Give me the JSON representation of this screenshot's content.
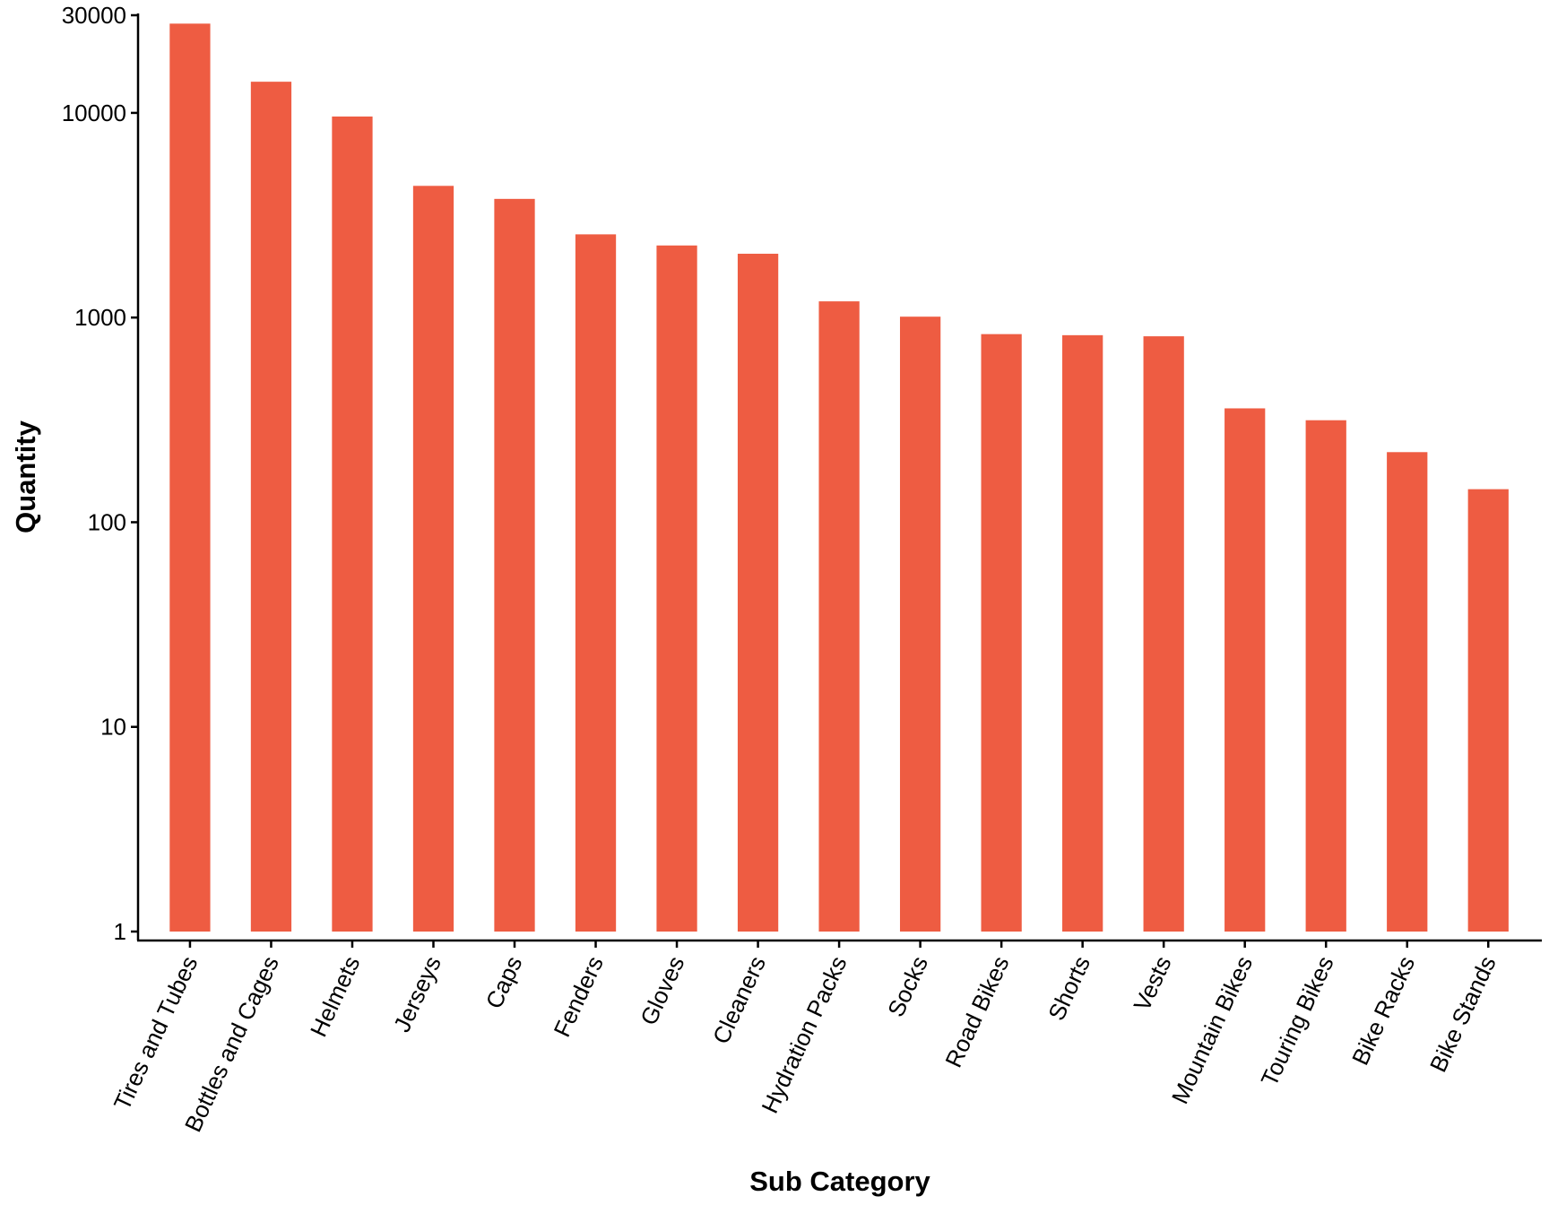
{
  "chart_data": {
    "type": "bar",
    "xlabel": "Sub Category",
    "ylabel": "Quantity",
    "yscale": "log",
    "ylim": [
      1,
      30000
    ],
    "yticks": [
      1,
      10,
      100,
      1000,
      10000,
      30000
    ],
    "ytick_labels": [
      "1",
      "10",
      "100",
      "1000",
      "10000",
      "30000"
    ],
    "bar_color": "#EE5C42",
    "grid": false,
    "legend": "none",
    "categories": [
      "Tires and Tubes",
      "Bottles and Cages",
      "Helmets",
      "Jerseys",
      "Caps",
      "Fenders",
      "Gloves",
      "Cleaners",
      "Hydration Packs",
      "Socks",
      "Road Bikes",
      "Shorts",
      "Vests",
      "Mountain Bikes",
      "Touring Bikes",
      "Bike Racks",
      "Bike Stands"
    ],
    "values": [
      27300,
      14200,
      9600,
      4400,
      3800,
      2550,
      2250,
      2050,
      1200,
      1010,
      830,
      820,
      810,
      360,
      315,
      220,
      145
    ]
  }
}
